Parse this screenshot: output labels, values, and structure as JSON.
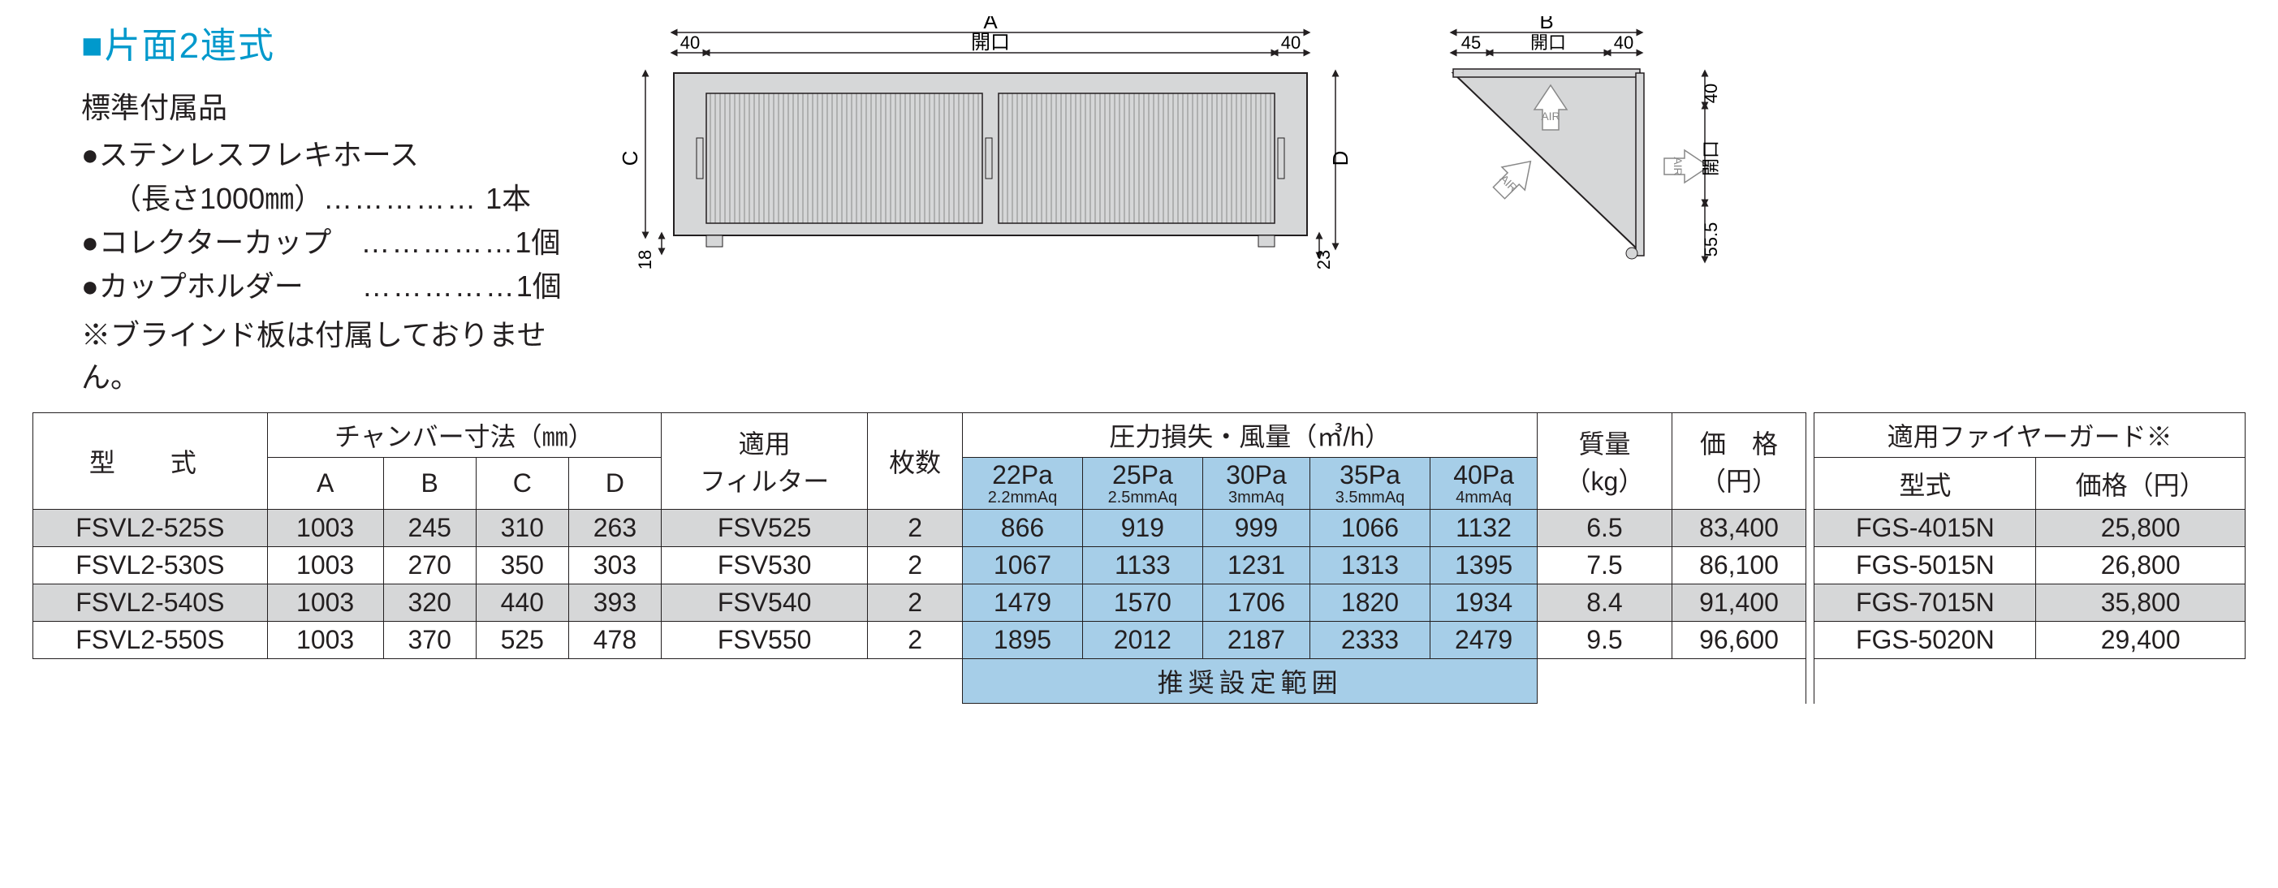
{
  "section": {
    "title_marker": "■",
    "title": "片面2連式",
    "subtitle": "標準付属品",
    "accessories": [
      {
        "bullet": "●",
        "name": "ステンレスフレキホース",
        "detail": "（長さ1000㎜）",
        "qty": "1本"
      },
      {
        "bullet": "●",
        "name": "コレクターカップ",
        "detail": "",
        "qty": "1個"
      },
      {
        "bullet": "●",
        "name": "カップホルダー",
        "detail": "",
        "qty": "1個"
      }
    ],
    "note": "※ブラインド板は付属しておりません。"
  },
  "diagram": {
    "labels": {
      "A": "A",
      "B": "B",
      "C": "C",
      "D": "D",
      "opening": "開口",
      "air": "AIR"
    },
    "dims": {
      "front_left": "40",
      "front_right": "40",
      "front_bottom_left": "18",
      "front_bottom_right": "23",
      "side_left": "45",
      "side_right": "40",
      "side_top": "40",
      "side_bottom": "55.5"
    },
    "colors": {
      "panel_fill": "#d6d7d8",
      "stroke": "#231f20",
      "air_arrow": "#888888"
    }
  },
  "table": {
    "headers": {
      "model": "型　式",
      "chamber": "チャンバー寸法（㎜）",
      "A": "A",
      "B": "B",
      "C": "C",
      "D": "D",
      "filter": "適用\nフィルター",
      "sheets": "枚数",
      "pressure_flow": "圧力損失・風量（㎥/h）",
      "mass": "質量\n（kg）",
      "price": "価　格\n（円）",
      "fireguard": "適用ファイヤーガード※",
      "fg_model": "型式",
      "fg_price": "価格（円）",
      "pa": [
        {
          "pa": "22Pa",
          "aq": "2.2mmAq"
        },
        {
          "pa": "25Pa",
          "aq": "2.5mmAq"
        },
        {
          "pa": "30Pa",
          "aq": "3mmAq"
        },
        {
          "pa": "35Pa",
          "aq": "3.5mmAq"
        },
        {
          "pa": "40Pa",
          "aq": "4mmAq"
        }
      ]
    },
    "rows": [
      {
        "model": "FSVL2-525S",
        "A": "1003",
        "B": "245",
        "C": "310",
        "D": "263",
        "filter": "FSV525",
        "sheets": "2",
        "flow": [
          "866",
          "919",
          "999",
          "1066",
          "1132"
        ],
        "mass": "6.5",
        "price": "83,400",
        "fg_model": "FGS-4015N",
        "fg_price": "25,800"
      },
      {
        "model": "FSVL2-530S",
        "A": "1003",
        "B": "270",
        "C": "350",
        "D": "303",
        "filter": "FSV530",
        "sheets": "2",
        "flow": [
          "1067",
          "1133",
          "1231",
          "1313",
          "1395"
        ],
        "mass": "7.5",
        "price": "86,100",
        "fg_model": "FGS-5015N",
        "fg_price": "26,800"
      },
      {
        "model": "FSVL2-540S",
        "A": "1003",
        "B": "320",
        "C": "440",
        "D": "393",
        "filter": "FSV540",
        "sheets": "2",
        "flow": [
          "1479",
          "1570",
          "1706",
          "1820",
          "1934"
        ],
        "mass": "8.4",
        "price": "91,400",
        "fg_model": "FGS-7015N",
        "fg_price": "35,800"
      },
      {
        "model": "FSVL2-550S",
        "A": "1003",
        "B": "370",
        "C": "525",
        "D": "478",
        "filter": "FSV550",
        "sheets": "2",
        "flow": [
          "1895",
          "2012",
          "2187",
          "2333",
          "2479"
        ],
        "mass": "9.5",
        "price": "96,600",
        "fg_model": "FGS-5020N",
        "fg_price": "29,400"
      }
    ],
    "footer": "推奨設定範囲",
    "colors": {
      "alt_row": "#d6d7d8",
      "highlight": "#a6cee8",
      "border": "#231f20"
    }
  }
}
